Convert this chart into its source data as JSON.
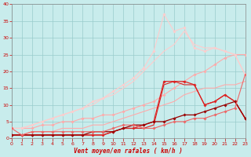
{
  "xlabel": "Vent moyen/en rafales ( km/h )",
  "background_color": "#c8ecec",
  "grid_color": "#99cccc",
  "x": [
    0,
    1,
    2,
    3,
    4,
    5,
    6,
    7,
    8,
    9,
    10,
    11,
    12,
    13,
    14,
    15,
    16,
    17,
    18,
    19,
    20,
    21,
    22,
    23
  ],
  "lines": [
    {
      "y": [
        3,
        3,
        3,
        4,
        4,
        5,
        5,
        6,
        6,
        7,
        7,
        8,
        9,
        10,
        11,
        13,
        15,
        17,
        19,
        20,
        22,
        24,
        25,
        25
      ],
      "color": "#ffaaaa",
      "lw": 0.8,
      "marker": "D",
      "ms": 1.8
    },
    {
      "y": [
        1,
        1,
        2,
        2,
        2,
        3,
        3,
        3,
        4,
        4,
        5,
        6,
        7,
        8,
        9,
        10,
        11,
        13,
        14,
        15,
        15,
        16,
        16,
        17
      ],
      "color": "#ffaaaa",
      "lw": 0.8,
      "marker": null,
      "ms": 0
    },
    {
      "y": [
        3,
        3,
        4,
        5,
        6,
        7,
        8,
        9,
        11,
        12,
        14,
        16,
        18,
        21,
        26,
        37,
        32,
        33,
        27,
        26,
        27,
        26,
        25,
        19
      ],
      "color": "#ffcccc",
      "lw": 0.8,
      "marker": "D",
      "ms": 1.8
    },
    {
      "y": [
        3,
        3,
        4,
        5,
        6,
        7,
        8,
        9,
        10,
        12,
        13,
        15,
        17,
        20,
        23,
        26,
        28,
        32,
        28,
        27,
        27,
        26,
        25,
        19
      ],
      "color": "#ffcccc",
      "lw": 0.8,
      "marker": null,
      "ms": 0
    },
    {
      "y": [
        1,
        1,
        1,
        1,
        1,
        1,
        1,
        1,
        1,
        1,
        2,
        3,
        3,
        4,
        5,
        17,
        17,
        17,
        16,
        10,
        11,
        13,
        11,
        6
      ],
      "color": "#dd2222",
      "lw": 0.9,
      "marker": "D",
      "ms": 1.8
    },
    {
      "y": [
        1,
        1,
        1,
        1,
        1,
        1,
        1,
        1,
        1,
        1,
        2,
        3,
        3,
        3,
        4,
        16,
        17,
        16,
        16,
        10,
        11,
        13,
        11,
        6
      ],
      "color": "#dd2222",
      "lw": 0.8,
      "marker": null,
      "ms": 0
    },
    {
      "y": [
        1,
        1,
        1,
        1,
        1,
        1,
        1,
        1,
        2,
        2,
        2,
        3,
        4,
        4,
        5,
        5,
        6,
        7,
        7,
        8,
        9,
        10,
        11,
        6
      ],
      "color": "#990000",
      "lw": 0.9,
      "marker": "D",
      "ms": 1.8
    },
    {
      "y": [
        3,
        1,
        2,
        2,
        2,
        2,
        2,
        2,
        2,
        2,
        3,
        4,
        4,
        3,
        3,
        4,
        5,
        5,
        6,
        6,
        7,
        8,
        9,
        19
      ],
      "color": "#ee6666",
      "lw": 0.8,
      "marker": "D",
      "ms": 1.8
    }
  ],
  "ylim": [
    0,
    40
  ],
  "xlim": [
    0,
    23
  ],
  "yticks": [
    0,
    5,
    10,
    15,
    20,
    25,
    30,
    35,
    40
  ],
  "xticks": [
    0,
    1,
    2,
    3,
    4,
    5,
    6,
    7,
    8,
    9,
    10,
    11,
    12,
    13,
    14,
    15,
    16,
    17,
    18,
    19,
    20,
    21,
    22,
    23
  ]
}
